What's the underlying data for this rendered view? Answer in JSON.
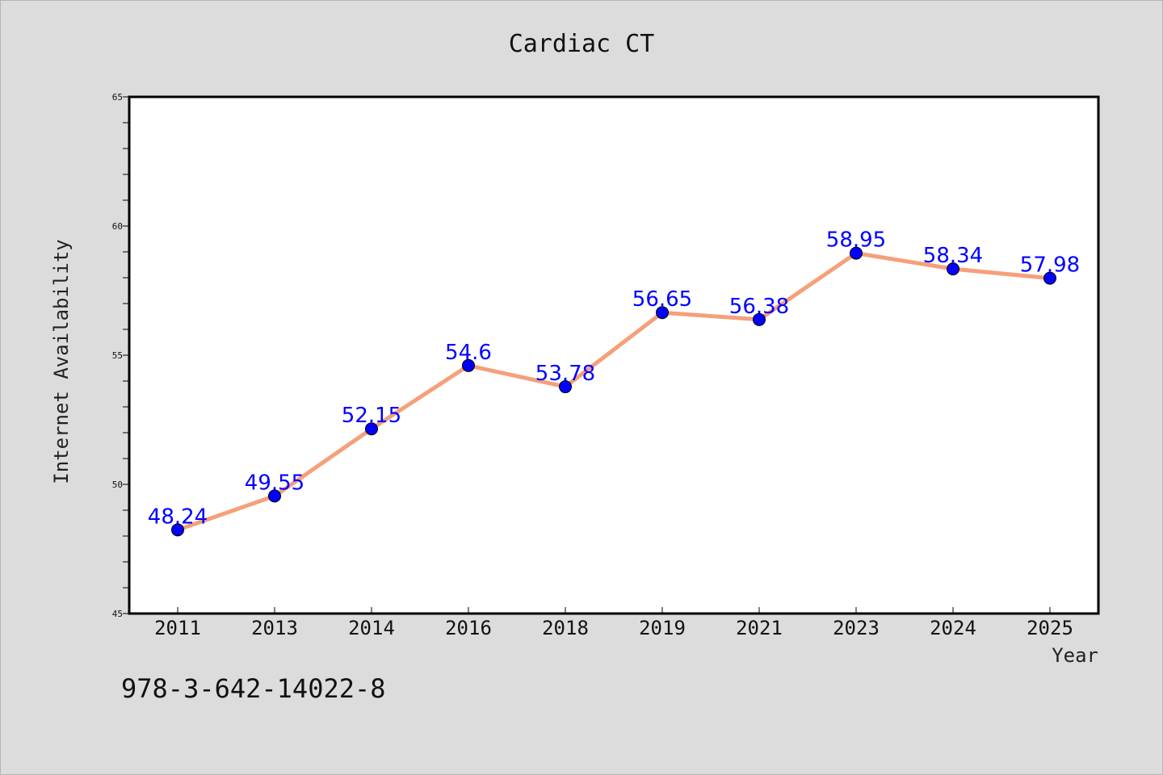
{
  "chart_data": {
    "type": "line",
    "title": "Cardiac CT",
    "xlabel": "Year",
    "ylabel": "Internet Availability",
    "categories": [
      "2011",
      "2013",
      "2014",
      "2016",
      "2018",
      "2019",
      "2021",
      "2023",
      "2024",
      "2025"
    ],
    "series": [
      {
        "values": [
          48.24,
          49.55,
          52.15,
          54.6,
          53.78,
          56.65,
          56.38,
          58.95,
          58.34,
          57.98
        ],
        "labels": [
          "48.24",
          "49.55",
          "52.15",
          "54.6",
          "53.78",
          "56.65",
          "56.38",
          "58.95",
          "58.34",
          "57.98"
        ],
        "line_color": "#f5a07a",
        "marker_color": "#0000ff"
      }
    ],
    "ylim": [
      45,
      65
    ],
    "yticks": [
      "45",
      "50",
      "55",
      "60",
      "65"
    ],
    "grid": false,
    "legend": "none"
  },
  "footer_text": "978-3-642-14022-8",
  "colors": {
    "background": "#dcdcdc",
    "plot_background": "#ffffff",
    "axis": "#000000"
  }
}
